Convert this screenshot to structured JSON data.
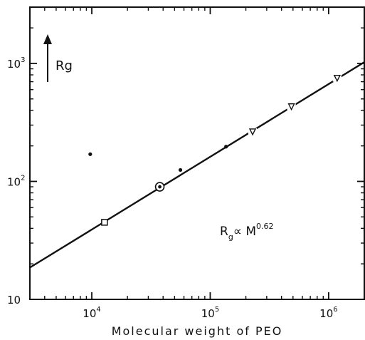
{
  "chart_data": {
    "type": "scatter",
    "title": "",
    "xlabel": "Molecular  weight  of  PEO",
    "ylabel": "Rg",
    "x_scale": "log",
    "y_scale": "log",
    "xlim": [
      3000,
      2000000
    ],
    "ylim": [
      10,
      3000
    ],
    "x_ticks": [
      {
        "value": 10000,
        "base": "10",
        "exp": "4"
      },
      {
        "value": 100000,
        "base": "10",
        "exp": "5"
      },
      {
        "value": 1000000,
        "base": "10",
        "exp": "6"
      }
    ],
    "y_ticks": [
      {
        "value": 10,
        "base": "10",
        "exp": ""
      },
      {
        "value": 100,
        "base": "10",
        "exp": "2"
      },
      {
        "value": 1000,
        "base": "10",
        "exp": "3"
      }
    ],
    "annotation": {
      "base": "R",
      "sub": "g",
      "mid": "∝ M",
      "exp": "0.62"
    },
    "fit_line": {
      "x": [
        3000,
        2000000
      ],
      "y": [
        18.6,
        1025
      ]
    },
    "series": [
      {
        "marker": "square",
        "points": [
          {
            "x": 12800,
            "y": 45
          }
        ]
      },
      {
        "marker": "circled-dot",
        "points": [
          {
            "x": 37500,
            "y": 90
          }
        ]
      },
      {
        "marker": "dot",
        "points": [
          {
            "x": 9700,
            "y": 170
          },
          {
            "x": 56000,
            "y": 125
          },
          {
            "x": 136000,
            "y": 197
          }
        ]
      },
      {
        "marker": "triangle-down",
        "points": [
          {
            "x": 228000,
            "y": 263
          },
          {
            "x": 485000,
            "y": 430
          },
          {
            "x": 1180000,
            "y": 750
          }
        ]
      }
    ]
  }
}
